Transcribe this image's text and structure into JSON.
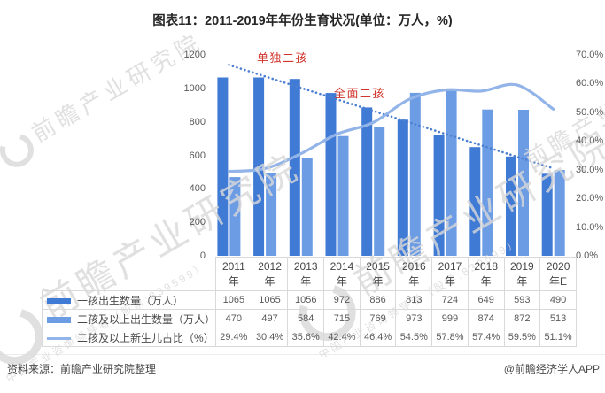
{
  "title": "图表11：2011-2019年年份生育状况(单位：万人，%)",
  "chart_data": {
    "type": "combo-bar-line",
    "title": "图表11：2011-2019年年份生育状况(单位：万人，%)",
    "categories": [
      "2011年",
      "2012年",
      "2013年",
      "2014年",
      "2015年",
      "2016年",
      "2017年",
      "2018年",
      "2019年",
      "2020年E"
    ],
    "series": [
      {
        "name": "一孩出生数量（万人）",
        "type": "bar",
        "axis": "left",
        "color": "#3f7ad5",
        "values": [
          1065,
          1065,
          1056,
          972,
          886,
          813,
          724,
          649,
          593,
          490
        ]
      },
      {
        "name": "二孩及以上出生数量（万人）",
        "type": "bar",
        "axis": "left",
        "color": "#6c9ce4",
        "values": [
          470,
          497,
          584,
          715,
          769,
          973,
          999,
          874,
          872,
          513
        ]
      },
      {
        "name": "二孩及以上新生儿占比（%）",
        "type": "line",
        "axis": "right",
        "color": "#92b4e8",
        "values": [
          29.4,
          30.4,
          35.6,
          42.4,
          46.4,
          54.5,
          57.8,
          57.4,
          59.5,
          51.1
        ],
        "display_values": [
          "29.4%",
          "30.4%",
          "35.6%",
          "42.4%",
          "46.4%",
          "54.5%",
          "57.8%",
          "57.4%",
          "59.5%",
          "51.1%"
        ]
      }
    ],
    "left_axis": {
      "min": 0,
      "max": 1200,
      "ticks": [
        "1200",
        "1000",
        "800",
        "600",
        "400",
        "200",
        "0"
      ]
    },
    "right_axis": {
      "min": 0,
      "max": 70,
      "ticks": [
        "70.0%",
        "60.0%",
        "50.0%",
        "40.0%",
        "30.0%",
        "20.0%",
        "10.0%",
        "0.0%"
      ]
    },
    "trendline": {
      "series_index": 0,
      "style": "dotted",
      "color": "#4d7fd2"
    },
    "annotations": [
      {
        "text": "单独二孩",
        "color": "#d0342c"
      },
      {
        "text": "全面二孩",
        "color": "#d0342c"
      }
    ],
    "grid": false,
    "legend_position": "table-left"
  },
  "footer": {
    "source": "资料来源：前瞻产业研究院整理",
    "credit": "@前瞻经济学人APP"
  },
  "watermark": {
    "main": "前瞻产业研究院",
    "sub": "中国产业咨询领导者（股票:839599）"
  }
}
